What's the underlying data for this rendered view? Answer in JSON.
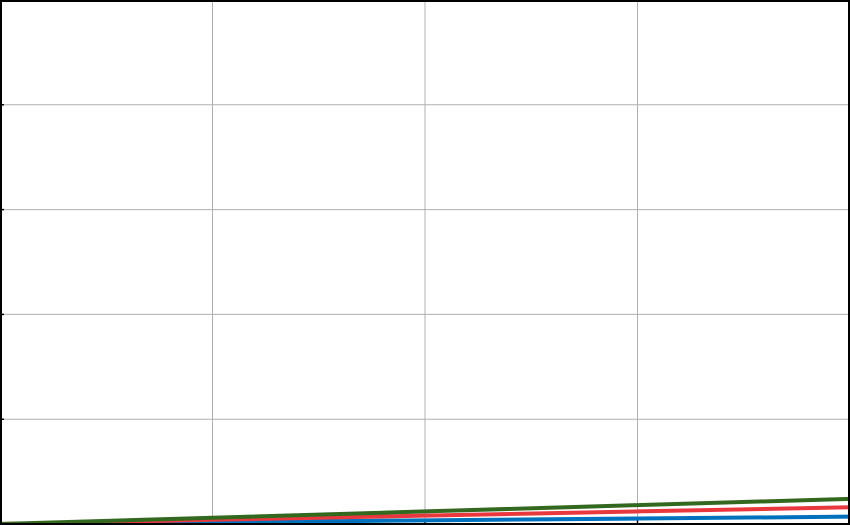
{
  "chart_data": {
    "type": "line",
    "title": "",
    "xlabel": "",
    "ylabel": "",
    "grid": true,
    "x": [
      0,
      1,
      2,
      3,
      4
    ],
    "xlim": [
      0,
      4
    ],
    "ylim": [
      0,
      5
    ],
    "xticks": [
      0,
      1,
      2,
      3,
      4
    ],
    "yticks": [
      0,
      1,
      2,
      3,
      4,
      5
    ],
    "series": [
      {
        "color": "#0072bd",
        "values": [
          0,
          0.017,
          0.035,
          0.052,
          0.07
        ]
      },
      {
        "color": "#e8383d",
        "values": [
          0,
          0.04,
          0.08,
          0.12,
          0.16
        ]
      },
      {
        "color": "#33691e",
        "values": [
          0,
          0.06,
          0.12,
          0.18,
          0.24
        ]
      }
    ],
    "frame_color": "#000000",
    "grid_color": "#b0b0b0"
  }
}
